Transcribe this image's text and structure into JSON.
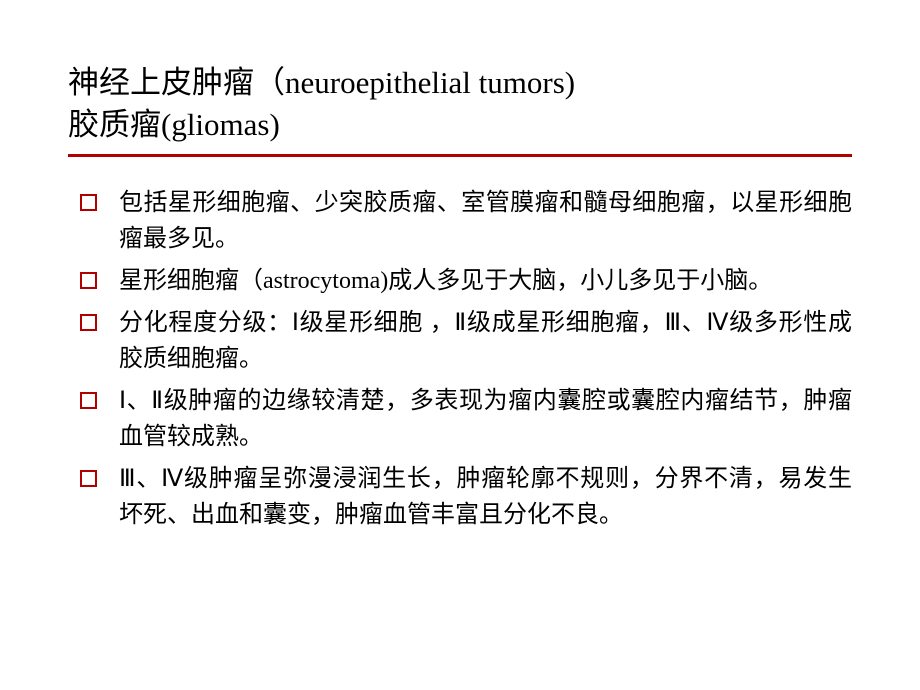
{
  "title": {
    "line1": "神经上皮肿瘤（neuroepithelial tumors)",
    "line2": "胶质瘤(gliomas)"
  },
  "accent_color": "#b00000",
  "text_color": "#000000",
  "background_color": "#ffffff",
  "title_fontsize": 31,
  "body_fontsize": 24,
  "bullets": [
    {
      "text": "包括星形细胞瘤、少突胶质瘤、室管膜瘤和髓母细胞瘤，以星形细胞瘤最多见。"
    },
    {
      "text": "星形细胞瘤（astrocytoma)成人多见于大脑，小儿多见于小脑。"
    },
    {
      "text": "分化程度分级：Ⅰ级星形细胞 ，Ⅱ级成星形细胞瘤，Ⅲ、Ⅳ级多形性成胶质细胞瘤。"
    },
    {
      "text": "Ⅰ、Ⅱ级肿瘤的边缘较清楚，多表现为瘤内囊腔或囊腔内瘤结节，肿瘤血管较成熟。"
    },
    {
      "text": "Ⅲ、Ⅳ级肿瘤呈弥漫浸润生长，肿瘤轮廓不规则，分界不清，易发生坏死、出血和囊变，肿瘤血管丰富且分化不良。"
    }
  ]
}
